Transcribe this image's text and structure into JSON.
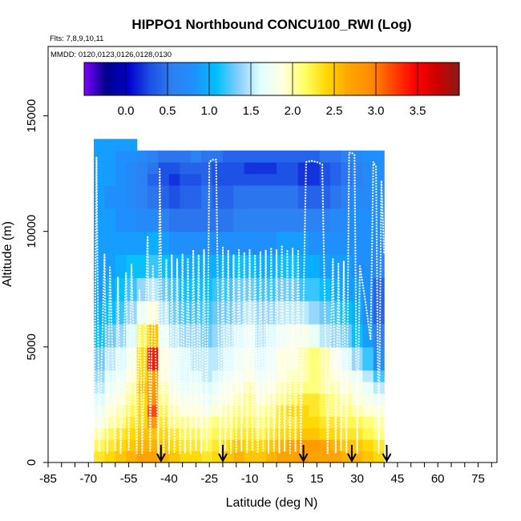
{
  "chart_data": {
    "type": "heatmap",
    "title": "HIPPO1 Northbound CONCU100_RWI (Log)",
    "flights_note": "Flts: 7,8,9,10,11",
    "dates_note": "MMDD: 0120,0123,0126,0128,0130",
    "xlabel": "Latitude (deg N)",
    "ylabel": "Altitude (m)",
    "xlim": [
      -85,
      82
    ],
    "ylim": [
      0,
      18000
    ],
    "x_ticks": [
      -85,
      -70,
      -55,
      -40,
      -25,
      -10,
      5,
      15,
      30,
      45,
      60,
      75
    ],
    "x_tick_labels": [
      "-85",
      "-70",
      "-55",
      "-40",
      "-25",
      "-10",
      "5",
      "15",
      "30",
      "45",
      "60",
      "75"
    ],
    "y_ticks": [
      0,
      5000,
      10000,
      15000
    ],
    "y_tick_labels": [
      "0",
      "5000",
      "10000",
      "15000"
    ],
    "colorbar": {
      "range": [
        -0.5,
        4.0
      ],
      "ticks": [
        0.0,
        0.5,
        1.0,
        1.5,
        2.0,
        2.5,
        3.0,
        3.5
      ],
      "tick_labels": [
        "0.0",
        "0.5",
        "1.0",
        "1.5",
        "2.0",
        "2.5",
        "3.0",
        "3.5"
      ],
      "colors": [
        "#7f00ff",
        "#00008b",
        "#0000cd",
        "#1e50e6",
        "#2f80f0",
        "#1e90ff",
        "#00bfff",
        "#87cefa",
        "#e0ffff",
        "#ffffe0",
        "#ffff66",
        "#ffd700",
        "#ffa500",
        "#ff8c00",
        "#ff4500",
        "#ff0000",
        "#cd0000",
        "#8b1a1a"
      ]
    },
    "curtain": {
      "lat_edges": [
        -68,
        -64,
        -60,
        -56,
        -52,
        -48,
        -44,
        -40,
        -36,
        -32,
        -28,
        -24,
        -20,
        -16,
        -12,
        -8,
        -4,
        0,
        4,
        8,
        12,
        16,
        20,
        24,
        28,
        32,
        36,
        40
      ],
      "alt_edges": [
        0,
        500,
        1000,
        1500,
        2000,
        2500,
        3000,
        3500,
        4000,
        5000,
        6000,
        7000,
        8000,
        9000,
        10000,
        11000,
        12000,
        12500,
        13000,
        13500,
        14000
      ],
      "rows": [
        [
          2.3,
          2.4,
          2.5,
          2.6,
          2.7,
          2.7,
          2.6,
          2.5,
          2.4,
          2.4,
          2.3,
          2.4,
          2.5,
          2.6,
          2.5,
          2.5,
          2.6,
          2.7,
          2.7,
          2.8,
          2.7,
          2.7,
          2.7,
          2.6,
          2.6,
          2.5,
          2.4
        ],
        [
          2.2,
          2.3,
          2.4,
          2.5,
          2.6,
          2.6,
          2.5,
          2.4,
          2.3,
          2.3,
          2.2,
          2.3,
          2.4,
          2.5,
          2.4,
          2.4,
          2.5,
          2.6,
          2.7,
          2.8,
          2.8,
          2.7,
          2.6,
          2.5,
          2.5,
          2.4,
          2.3
        ],
        [
          2.0,
          2.2,
          2.3,
          2.4,
          2.5,
          2.5,
          2.4,
          2.3,
          2.2,
          2.2,
          2.1,
          2.2,
          2.2,
          2.3,
          2.3,
          2.2,
          2.3,
          2.4,
          2.4,
          2.5,
          2.5,
          2.4,
          2.4,
          2.3,
          2.3,
          2.2,
          2.1
        ],
        [
          1.8,
          2.0,
          2.1,
          2.3,
          2.4,
          2.8,
          2.3,
          2.1,
          2.1,
          2.0,
          2.0,
          2.1,
          2.1,
          2.2,
          2.2,
          2.1,
          2.2,
          2.3,
          2.3,
          2.4,
          2.4,
          2.3,
          2.3,
          2.2,
          2.2,
          2.1,
          2.0
        ],
        [
          1.7,
          1.9,
          2.0,
          2.2,
          2.4,
          3.2,
          2.2,
          2.0,
          1.9,
          1.9,
          1.8,
          1.9,
          2.0,
          2.1,
          2.1,
          2.0,
          2.1,
          2.3,
          2.4,
          2.4,
          2.3,
          2.2,
          2.1,
          2.1,
          2.0,
          1.9,
          1.9
        ],
        [
          1.6,
          1.8,
          1.9,
          2.1,
          2.4,
          2.9,
          2.1,
          1.9,
          1.8,
          1.8,
          1.7,
          1.8,
          1.9,
          2.0,
          2.1,
          1.9,
          2.0,
          2.1,
          2.2,
          2.3,
          2.3,
          2.2,
          2.1,
          2.0,
          1.9,
          1.8,
          1.7
        ],
        [
          1.5,
          1.7,
          1.8,
          2.0,
          2.5,
          2.8,
          2.0,
          1.8,
          1.7,
          1.7,
          1.6,
          1.7,
          1.8,
          1.9,
          2.0,
          1.8,
          1.9,
          2.0,
          2.1,
          2.1,
          2.1,
          2.0,
          2.0,
          1.9,
          1.8,
          1.7,
          1.5
        ],
        [
          1.4,
          1.6,
          1.7,
          1.9,
          2.4,
          2.7,
          1.9,
          1.7,
          1.6,
          1.6,
          1.5,
          1.6,
          1.7,
          1.8,
          1.9,
          1.7,
          1.8,
          1.9,
          2.0,
          2.0,
          2.1,
          2.0,
          1.9,
          1.8,
          1.7,
          1.5,
          1.2
        ],
        [
          1.3,
          1.5,
          1.6,
          1.8,
          2.4,
          3.4,
          1.9,
          1.7,
          1.6,
          1.5,
          1.5,
          1.5,
          1.6,
          1.7,
          1.8,
          1.6,
          1.7,
          1.9,
          1.9,
          2.0,
          2.1,
          2.0,
          1.8,
          1.6,
          1.4,
          1.2,
          0.8
        ],
        [
          1.1,
          1.3,
          1.4,
          1.6,
          2.2,
          2.5,
          1.7,
          1.5,
          1.4,
          1.4,
          1.3,
          1.4,
          1.5,
          1.6,
          1.7,
          1.5,
          1.6,
          1.7,
          1.8,
          1.8,
          1.7,
          1.5,
          1.4,
          1.3,
          1.1,
          0.9,
          0.6
        ],
        [
          1.0,
          1.1,
          1.2,
          1.4,
          1.7,
          1.9,
          1.5,
          1.3,
          1.2,
          1.2,
          1.2,
          1.3,
          1.3,
          1.4,
          1.5,
          1.4,
          1.4,
          1.5,
          1.5,
          1.5,
          1.4,
          1.3,
          1.2,
          1.1,
          1.0,
          0.8,
          0.4
        ],
        [
          0.9,
          1.0,
          1.1,
          1.2,
          1.4,
          1.5,
          1.3,
          1.2,
          1.1,
          1.1,
          1.1,
          1.2,
          1.2,
          1.3,
          1.3,
          1.2,
          1.2,
          1.3,
          1.3,
          1.2,
          1.2,
          1.1,
          1.0,
          0.9,
          0.9,
          0.8,
          0.4
        ],
        [
          0.9,
          0.9,
          1.0,
          1.1,
          1.1,
          1.2,
          1.1,
          1.0,
          1.0,
          1.0,
          1.0,
          1.0,
          1.0,
          1.1,
          1.1,
          1.0,
          1.0,
          1.1,
          1.1,
          1.0,
          1.0,
          0.9,
          0.9,
          0.9,
          0.8,
          0.8,
          0.7
        ],
        [
          0.9,
          0.9,
          0.9,
          0.9,
          0.9,
          1.0,
          0.9,
          0.8,
          0.8,
          0.8,
          0.8,
          0.8,
          0.8,
          0.8,
          0.8,
          0.8,
          0.8,
          0.9,
          0.9,
          0.9,
          0.8,
          0.8,
          0.8,
          0.8,
          0.8,
          0.8,
          0.8
        ],
        [
          0.9,
          0.9,
          0.8,
          0.8,
          0.7,
          0.7,
          0.6,
          0.5,
          0.5,
          0.5,
          0.5,
          0.5,
          0.5,
          0.6,
          0.6,
          0.6,
          0.6,
          0.6,
          0.6,
          0.6,
          0.6,
          0.6,
          0.7,
          0.7,
          0.8,
          0.8,
          0.8
        ],
        [
          0.9,
          0.8,
          0.8,
          0.7,
          0.6,
          0.5,
          0.4,
          0.3,
          0.4,
          0.4,
          0.5,
          0.4,
          0.4,
          0.5,
          0.5,
          0.5,
          0.5,
          0.5,
          0.5,
          0.4,
          0.4,
          0.4,
          0.5,
          0.6,
          0.7,
          0.7,
          0.8
        ],
        [
          0.9,
          0.9,
          0.8,
          0.7,
          0.6,
          0.4,
          0.3,
          0.2,
          0.3,
          0.3,
          0.4,
          0.3,
          0.3,
          0.3,
          0.3,
          0.3,
          0.3,
          0.3,
          0.3,
          0.2,
          0.2,
          0.3,
          0.4,
          0.5,
          0.6,
          0.7,
          0.8
        ],
        [
          0.9,
          0.9,
          0.8,
          0.7,
          0.6,
          0.5,
          0.3,
          0.3,
          0.4,
          0.4,
          0.4,
          0.3,
          0.3,
          0.3,
          0.2,
          0.2,
          0.2,
          0.3,
          0.3,
          0.2,
          0.2,
          0.3,
          0.4,
          0.5,
          0.6,
          0.7,
          0.8
        ],
        [
          0.9,
          0.9,
          0.8,
          0.8,
          0.7,
          0.6,
          0.5,
          0.5,
          0.5,
          0.6,
          0.5,
          0.5,
          0.4,
          0.4,
          0.4,
          0.4,
          0.4,
          0.4,
          0.4,
          0.4,
          0.4,
          0.5,
          0.5,
          0.6,
          0.7,
          0.8,
          0.8
        ],
        [
          0.9,
          0.9,
          0.9,
          0.9,
          null,
          null,
          null,
          null,
          null,
          null,
          null,
          null,
          null,
          null,
          null,
          null,
          null,
          null,
          null,
          null,
          null,
          null,
          null,
          null,
          null,
          null,
          null
        ]
      ]
    },
    "flight_track": {
      "lat": [
        -68,
        -67,
        -66,
        -64,
        -63,
        -62,
        -60,
        -59,
        -58,
        -56,
        -55,
        -54,
        -52,
        -51,
        -50,
        -48,
        -47,
        -46,
        -44,
        -43.5,
        -42,
        -41,
        -40,
        -39,
        -38,
        -37,
        -36,
        -35,
        -34,
        -33,
        -32,
        -31,
        -30,
        -29,
        -28,
        -27,
        -26,
        -25,
        -24,
        -22.5,
        -21,
        -20,
        -19,
        -18,
        -17,
        -16,
        -15,
        -14,
        -13,
        -12,
        -11,
        -10,
        -9,
        -8,
        -7,
        -6,
        -5,
        -4,
        -3,
        -2,
        -1,
        0,
        1,
        2,
        3,
        4,
        5,
        6,
        7,
        8,
        9,
        11,
        13,
        15,
        17,
        19,
        21,
        22,
        23,
        24,
        25,
        26,
        27,
        28,
        29,
        30,
        31,
        33,
        35,
        36,
        37,
        38,
        39,
        40
      ],
      "alt": [
        400,
        13200,
        500,
        9000,
        400,
        8500,
        500,
        8000,
        400,
        8200,
        500,
        8600,
        400,
        7500,
        400,
        9800,
        500,
        8500,
        400,
        12700,
        400,
        8800,
        400,
        9000,
        400,
        8800,
        400,
        9000,
        400,
        8800,
        400,
        9200,
        500,
        9000,
        400,
        9200,
        500,
        13000,
        13100,
        13100,
        400,
        9300,
        500,
        9200,
        400,
        9000,
        400,
        9200,
        500,
        9100,
        400,
        9200,
        500,
        9000,
        400,
        9100,
        500,
        9200,
        400,
        9300,
        500,
        9200,
        400,
        9400,
        500,
        9200,
        400,
        9300,
        500,
        9200,
        400,
        13000,
        13050,
        13000,
        12900,
        400,
        8800,
        400,
        8600,
        500,
        8700,
        400,
        13400,
        13400,
        13300,
        400,
        8500,
        7000,
        5300,
        13000,
        12800,
        400,
        12200,
        9000
      ]
    },
    "arrows_lat": [
      -43,
      -20,
      10,
      28,
      41
    ]
  }
}
